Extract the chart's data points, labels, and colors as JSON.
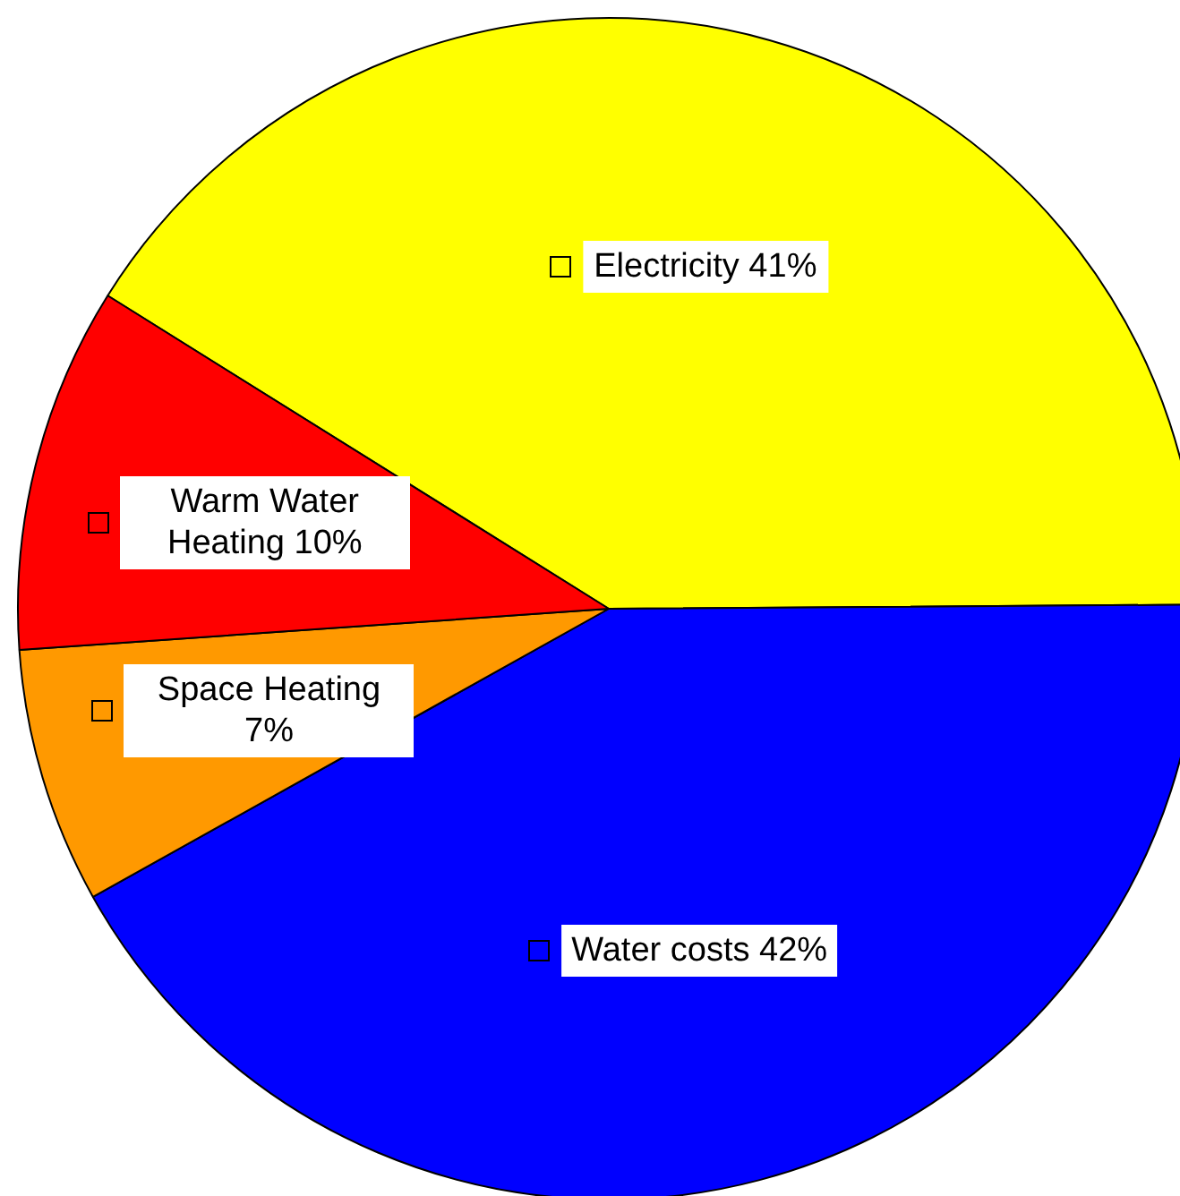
{
  "chart_data": {
    "type": "pie",
    "categories": [
      "Electricity",
      "Water costs",
      "Space Heating",
      "Warm Water Heating"
    ],
    "values": [
      41,
      42,
      7,
      10
    ],
    "colors": [
      "#ffff00",
      "#0000ff",
      "#ff9900",
      "#ff0000"
    ],
    "value_labels": [
      "41%",
      "42%",
      "7%",
      "10%"
    ],
    "legend": "left"
  }
}
